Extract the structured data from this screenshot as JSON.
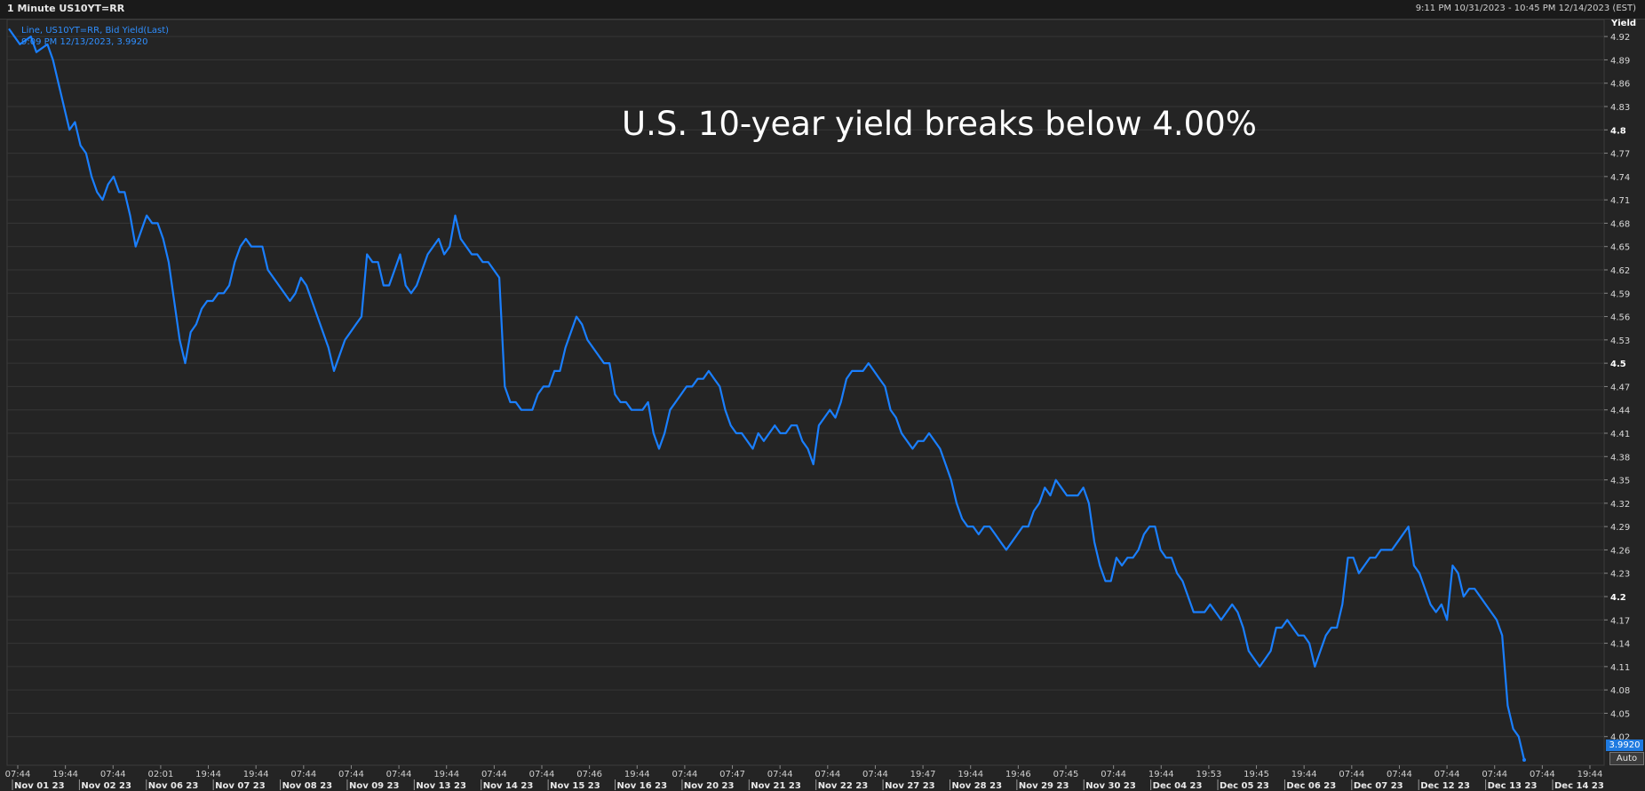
{
  "header": {
    "title": "1 Minute US10YT=RR",
    "range": "9:11 PM 10/31/2023 - 10:45 PM 12/14/2023 (EST)"
  },
  "legend": {
    "series_label": "Line, US10YT=RR, Bid Yield(Last)",
    "last_point": "9:09 PM 12/13/2023, 3.9920"
  },
  "annotation": "U.S. 10-year yield breaks below 4.00%",
  "yaxis_title": "Yield",
  "last_value_badge": "3.9920",
  "auto_button": "Auto",
  "colors": {
    "background": "#242424",
    "line": "#1a7fff",
    "grid": "#363636",
    "axis_text": "#d8d8d8"
  },
  "chart_data": {
    "type": "line",
    "title": "1 Minute US10YT=RR",
    "ylabel": "Yield",
    "ylim": [
      3.99,
      4.92
    ],
    "yticks": [
      4.92,
      4.89,
      4.86,
      4.83,
      4.8,
      4.77,
      4.74,
      4.71,
      4.68,
      4.65,
      4.62,
      4.59,
      4.56,
      4.53,
      4.5,
      4.47,
      4.44,
      4.41,
      4.38,
      4.35,
      4.32,
      4.29,
      4.26,
      4.23,
      4.2,
      4.17,
      4.14,
      4.11,
      4.08,
      4.05,
      4.02
    ],
    "ytick_labels": [
      "4.92",
      "4.89",
      "4.86",
      "4.83",
      "4.8",
      "4.77",
      "4.74",
      "4.71",
      "4.68",
      "4.65",
      "4.62",
      "4.59",
      "4.56",
      "4.53",
      "4.5",
      "4.47",
      "4.44",
      "4.41",
      "4.38",
      "4.35",
      "4.32",
      "4.29",
      "4.26",
      "4.23",
      "4.2",
      "4.17",
      "4.14",
      "4.11",
      "4.08",
      "4.05",
      "4.02"
    ],
    "bold_yticks": [
      "4.8",
      "4.5",
      "4.2"
    ],
    "time_ticks": [
      "07:44",
      "19:44",
      "07:44",
      "02:01",
      "19:44",
      "19:44",
      "07:44",
      "07:44",
      "07:44",
      "19:44",
      "07:44",
      "07:44",
      "07:46",
      "19:44",
      "07:44",
      "07:47",
      "07:44",
      "07:44",
      "07:44",
      "19:47",
      "19:44",
      "19:46",
      "07:45",
      "07:44",
      "19:44",
      "19:53",
      "19:45",
      "19:44",
      "07:44",
      "07:44",
      "07:44",
      "07:44",
      "07:44",
      "19:44"
    ],
    "date_labels": [
      "Nov 01 23",
      "Nov 02 23",
      "Nov 06 23",
      "Nov 07 23",
      "Nov 08 23",
      "Nov 09 23",
      "Nov 13 23",
      "Nov 14 23",
      "Nov 15 23",
      "Nov 16 23",
      "Nov 20 23",
      "Nov 21 23",
      "Nov 22 23",
      "Nov 27 23",
      "Nov 28 23",
      "Nov 29 23",
      "Nov 30 23",
      "Dec 04 23",
      "Dec 05 23",
      "Dec 06 23",
      "Dec 07 23",
      "Dec 12 23",
      "Dec 13 23",
      "Dec 14 23"
    ],
    "series": [
      {
        "name": "US10YT=RR, Bid Yield(Last)",
        "values": [
          [
            0,
            4.93
          ],
          [
            2,
            4.91
          ],
          [
            4,
            4.92
          ],
          [
            5,
            4.9
          ],
          [
            7,
            4.91
          ],
          [
            8,
            4.89
          ],
          [
            9,
            4.86
          ],
          [
            10,
            4.83
          ],
          [
            11,
            4.8
          ],
          [
            12,
            4.81
          ],
          [
            13,
            4.78
          ],
          [
            14,
            4.77
          ],
          [
            15,
            4.74
          ],
          [
            16,
            4.72
          ],
          [
            17,
            4.71
          ],
          [
            18,
            4.73
          ],
          [
            19,
            4.74
          ],
          [
            20,
            4.72
          ],
          [
            21,
            4.72
          ],
          [
            22,
            4.69
          ],
          [
            23,
            4.65
          ],
          [
            24,
            4.67
          ],
          [
            25,
            4.69
          ],
          [
            26,
            4.68
          ],
          [
            27,
            4.68
          ],
          [
            28,
            4.66
          ],
          [
            29,
            4.63
          ],
          [
            30,
            4.58
          ],
          [
            31,
            4.53
          ],
          [
            32,
            4.5
          ],
          [
            33,
            4.54
          ],
          [
            34,
            4.55
          ],
          [
            35,
            4.57
          ],
          [
            36,
            4.58
          ],
          [
            37,
            4.58
          ],
          [
            38,
            4.59
          ],
          [
            39,
            4.59
          ],
          [
            40,
            4.6
          ],
          [
            41,
            4.63
          ],
          [
            42,
            4.65
          ],
          [
            43,
            4.66
          ],
          [
            44,
            4.65
          ],
          [
            45,
            4.65
          ],
          [
            46,
            4.65
          ],
          [
            47,
            4.62
          ],
          [
            48,
            4.61
          ],
          [
            49,
            4.6
          ],
          [
            50,
            4.59
          ],
          [
            51,
            4.58
          ],
          [
            52,
            4.59
          ],
          [
            53,
            4.61
          ],
          [
            54,
            4.6
          ],
          [
            55,
            4.58
          ],
          [
            56,
            4.56
          ],
          [
            57,
            4.54
          ],
          [
            58,
            4.52
          ],
          [
            59,
            4.49
          ],
          [
            60,
            4.51
          ],
          [
            61,
            4.53
          ],
          [
            62,
            4.54
          ],
          [
            63,
            4.55
          ],
          [
            64,
            4.56
          ],
          [
            65,
            4.64
          ],
          [
            66,
            4.63
          ],
          [
            67,
            4.63
          ],
          [
            68,
            4.6
          ],
          [
            69,
            4.6
          ],
          [
            70,
            4.62
          ],
          [
            71,
            4.64
          ],
          [
            72,
            4.6
          ],
          [
            73,
            4.59
          ],
          [
            74,
            4.6
          ],
          [
            75,
            4.62
          ],
          [
            76,
            4.64
          ],
          [
            77,
            4.65
          ],
          [
            78,
            4.66
          ],
          [
            79,
            4.64
          ],
          [
            80,
            4.65
          ],
          [
            81,
            4.69
          ],
          [
            82,
            4.66
          ],
          [
            83,
            4.65
          ],
          [
            84,
            4.64
          ],
          [
            85,
            4.64
          ],
          [
            86,
            4.63
          ],
          [
            87,
            4.63
          ],
          [
            88,
            4.62
          ],
          [
            89,
            4.61
          ],
          [
            90,
            4.47
          ],
          [
            91,
            4.45
          ],
          [
            92,
            4.45
          ],
          [
            93,
            4.44
          ],
          [
            94,
            4.44
          ],
          [
            95,
            4.44
          ],
          [
            96,
            4.46
          ],
          [
            97,
            4.47
          ],
          [
            98,
            4.47
          ],
          [
            99,
            4.49
          ],
          [
            100,
            4.49
          ],
          [
            101,
            4.52
          ],
          [
            102,
            4.54
          ],
          [
            103,
            4.56
          ],
          [
            104,
            4.55
          ],
          [
            105,
            4.53
          ],
          [
            106,
            4.52
          ],
          [
            107,
            4.51
          ],
          [
            108,
            4.5
          ],
          [
            109,
            4.5
          ],
          [
            110,
            4.46
          ],
          [
            111,
            4.45
          ],
          [
            112,
            4.45
          ],
          [
            113,
            4.44
          ],
          [
            114,
            4.44
          ],
          [
            115,
            4.44
          ],
          [
            116,
            4.45
          ],
          [
            117,
            4.41
          ],
          [
            118,
            4.39
          ],
          [
            119,
            4.41
          ],
          [
            120,
            4.44
          ],
          [
            121,
            4.45
          ],
          [
            122,
            4.46
          ],
          [
            123,
            4.47
          ],
          [
            124,
            4.47
          ],
          [
            125,
            4.48
          ],
          [
            126,
            4.48
          ],
          [
            127,
            4.49
          ],
          [
            128,
            4.48
          ],
          [
            129,
            4.47
          ],
          [
            130,
            4.44
          ],
          [
            131,
            4.42
          ],
          [
            132,
            4.41
          ],
          [
            133,
            4.41
          ],
          [
            134,
            4.4
          ],
          [
            135,
            4.39
          ],
          [
            136,
            4.41
          ],
          [
            137,
            4.4
          ],
          [
            138,
            4.41
          ],
          [
            139,
            4.42
          ],
          [
            140,
            4.41
          ],
          [
            141,
            4.41
          ],
          [
            142,
            4.42
          ],
          [
            143,
            4.42
          ],
          [
            144,
            4.4
          ],
          [
            145,
            4.39
          ],
          [
            146,
            4.37
          ],
          [
            147,
            4.42
          ],
          [
            148,
            4.43
          ],
          [
            149,
            4.44
          ],
          [
            150,
            4.43
          ],
          [
            151,
            4.45
          ],
          [
            152,
            4.48
          ],
          [
            153,
            4.49
          ],
          [
            154,
            4.49
          ],
          [
            155,
            4.49
          ],
          [
            156,
            4.5
          ],
          [
            157,
            4.49
          ],
          [
            158,
            4.48
          ],
          [
            159,
            4.47
          ],
          [
            160,
            4.44
          ],
          [
            161,
            4.43
          ],
          [
            162,
            4.41
          ],
          [
            163,
            4.4
          ],
          [
            164,
            4.39
          ],
          [
            165,
            4.4
          ],
          [
            166,
            4.4
          ],
          [
            167,
            4.41
          ],
          [
            168,
            4.4
          ],
          [
            169,
            4.39
          ],
          [
            170,
            4.37
          ],
          [
            171,
            4.35
          ],
          [
            172,
            4.32
          ],
          [
            173,
            4.3
          ],
          [
            174,
            4.29
          ],
          [
            175,
            4.29
          ],
          [
            176,
            4.28
          ],
          [
            177,
            4.29
          ],
          [
            178,
            4.29
          ],
          [
            179,
            4.28
          ],
          [
            180,
            4.27
          ],
          [
            181,
            4.26
          ],
          [
            182,
            4.27
          ],
          [
            183,
            4.28
          ],
          [
            184,
            4.29
          ],
          [
            185,
            4.29
          ],
          [
            186,
            4.31
          ],
          [
            187,
            4.32
          ],
          [
            188,
            4.34
          ],
          [
            189,
            4.33
          ],
          [
            190,
            4.35
          ],
          [
            191,
            4.34
          ],
          [
            192,
            4.33
          ],
          [
            193,
            4.33
          ],
          [
            194,
            4.33
          ],
          [
            195,
            4.34
          ],
          [
            196,
            4.32
          ],
          [
            197,
            4.27
          ],
          [
            198,
            4.24
          ],
          [
            199,
            4.22
          ],
          [
            200,
            4.22
          ],
          [
            201,
            4.25
          ],
          [
            202,
            4.24
          ],
          [
            203,
            4.25
          ],
          [
            204,
            4.25
          ],
          [
            205,
            4.26
          ],
          [
            206,
            4.28
          ],
          [
            207,
            4.29
          ],
          [
            208,
            4.29
          ],
          [
            209,
            4.26
          ],
          [
            210,
            4.25
          ],
          [
            211,
            4.25
          ],
          [
            212,
            4.23
          ],
          [
            213,
            4.22
          ],
          [
            214,
            4.2
          ],
          [
            215,
            4.18
          ],
          [
            216,
            4.18
          ],
          [
            217,
            4.18
          ],
          [
            218,
            4.19
          ],
          [
            219,
            4.18
          ],
          [
            220,
            4.17
          ],
          [
            221,
            4.18
          ],
          [
            222,
            4.19
          ],
          [
            223,
            4.18
          ],
          [
            224,
            4.16
          ],
          [
            225,
            4.13
          ],
          [
            226,
            4.12
          ],
          [
            227,
            4.11
          ],
          [
            228,
            4.12
          ],
          [
            229,
            4.13
          ],
          [
            230,
            4.16
          ],
          [
            231,
            4.16
          ],
          [
            232,
            4.17
          ],
          [
            233,
            4.16
          ],
          [
            234,
            4.15
          ],
          [
            235,
            4.15
          ],
          [
            236,
            4.14
          ],
          [
            237,
            4.11
          ],
          [
            238,
            4.13
          ],
          [
            239,
            4.15
          ],
          [
            240,
            4.16
          ],
          [
            241,
            4.16
          ],
          [
            242,
            4.19
          ],
          [
            243,
            4.25
          ],
          [
            244,
            4.25
          ],
          [
            245,
            4.23
          ],
          [
            246,
            4.24
          ],
          [
            247,
            4.25
          ],
          [
            248,
            4.25
          ],
          [
            249,
            4.26
          ],
          [
            250,
            4.26
          ],
          [
            251,
            4.26
          ],
          [
            252,
            4.27
          ],
          [
            253,
            4.28
          ],
          [
            254,
            4.29
          ],
          [
            255,
            4.24
          ],
          [
            256,
            4.23
          ],
          [
            257,
            4.21
          ],
          [
            258,
            4.19
          ],
          [
            259,
            4.18
          ],
          [
            260,
            4.19
          ],
          [
            261,
            4.17
          ],
          [
            262,
            4.24
          ],
          [
            263,
            4.23
          ],
          [
            264,
            4.2
          ],
          [
            265,
            4.21
          ],
          [
            266,
            4.21
          ],
          [
            267,
            4.2
          ],
          [
            268,
            4.19
          ],
          [
            269,
            4.18
          ],
          [
            270,
            4.17
          ],
          [
            271,
            4.15
          ],
          [
            272,
            4.06
          ],
          [
            273,
            4.03
          ],
          [
            274,
            4.02
          ],
          [
            275,
            3.99
          ]
        ]
      }
    ]
  }
}
